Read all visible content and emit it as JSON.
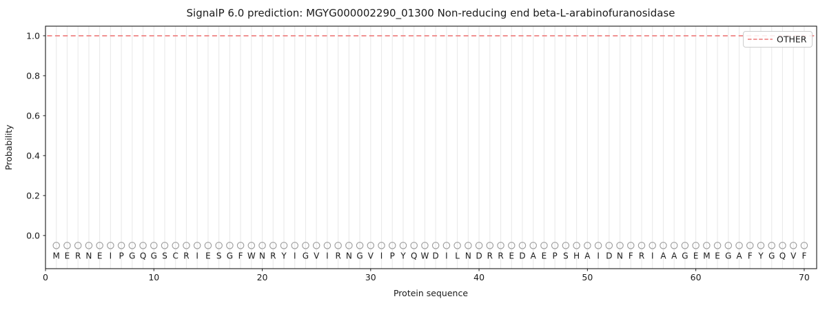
{
  "chart_data": {
    "type": "line",
    "title": "SignalP 6.0 prediction: MGYG000002290_01300 Non-reducing end beta-L-arabinofuranosidase",
    "xlabel": "Protein sequence",
    "ylabel": "Probability",
    "xlim": [
      0,
      71.15
    ],
    "ylim": [
      -0.166,
      1.048
    ],
    "xticks": [
      "0",
      "10",
      "20",
      "30",
      "40",
      "50",
      "60",
      "70"
    ],
    "xtick_values": [
      0,
      10,
      20,
      30,
      40,
      50,
      60,
      70
    ],
    "yticks": [
      "0.0",
      "0.2",
      "0.4",
      "0.6",
      "0.8",
      "1.0"
    ],
    "ytick_values": [
      0.0,
      0.2,
      0.4,
      0.6,
      0.8,
      1.0
    ],
    "grid": "vertical line at each residue position, no horizontal gridlines",
    "legend": {
      "position": "upper right",
      "entries": [
        {
          "label": "OTHER",
          "color": "#ef8a8a",
          "dashed": true
        }
      ]
    },
    "series": [
      {
        "name": "OTHER",
        "style": "dashed",
        "color": "#ef8a8a",
        "x": [
          1,
          2,
          3,
          4,
          5,
          6,
          7,
          8,
          9,
          10,
          11,
          12,
          13,
          14,
          15,
          16,
          17,
          18,
          19,
          20,
          21,
          22,
          23,
          24,
          25,
          26,
          27,
          28,
          29,
          30,
          31,
          32,
          33,
          34,
          35,
          36,
          37,
          38,
          39,
          40,
          41,
          42,
          43,
          44,
          45,
          46,
          47,
          48,
          49,
          50,
          51,
          52,
          53,
          54,
          55,
          56,
          57,
          58,
          59,
          60,
          61,
          62,
          63,
          64,
          65,
          66,
          67,
          68,
          69,
          70
        ],
        "values": [
          1.0,
          1.0,
          1.0,
          1.0,
          1.0,
          1.0,
          1.0,
          1.0,
          1.0,
          1.0,
          1.0,
          1.0,
          1.0,
          1.0,
          1.0,
          1.0,
          1.0,
          1.0,
          1.0,
          1.0,
          1.0,
          1.0,
          1.0,
          1.0,
          1.0,
          1.0,
          1.0,
          1.0,
          1.0,
          1.0,
          1.0,
          1.0,
          1.0,
          1.0,
          1.0,
          1.0,
          1.0,
          1.0,
          1.0,
          1.0,
          1.0,
          1.0,
          1.0,
          1.0,
          1.0,
          1.0,
          1.0,
          1.0,
          1.0,
          1.0,
          1.0,
          1.0,
          1.0,
          1.0,
          1.0,
          1.0,
          1.0,
          1.0,
          1.0,
          1.0,
          1.0,
          1.0,
          1.0,
          1.0,
          1.0,
          1.0,
          1.0,
          1.0,
          1.0,
          1.0
        ]
      }
    ],
    "sequence": "MERNEIPGQGSCRIESGFWNRYIGVIRNGVIPYQWDILNDRREDAEPSHAIDNFRIAAGEMEGAFYGQVF",
    "sequence_marker_value": -0.05,
    "sequence_letter_value": -0.1,
    "colors": {
      "other_line": "#ef8a8a",
      "gridline": "#e9e9e9",
      "marker_circle": "#9c9c9c",
      "spine": "#1a1a1a",
      "text": "#1a1a1a",
      "legend_border": "#cccccc",
      "legend_background": "#ffffff"
    }
  }
}
